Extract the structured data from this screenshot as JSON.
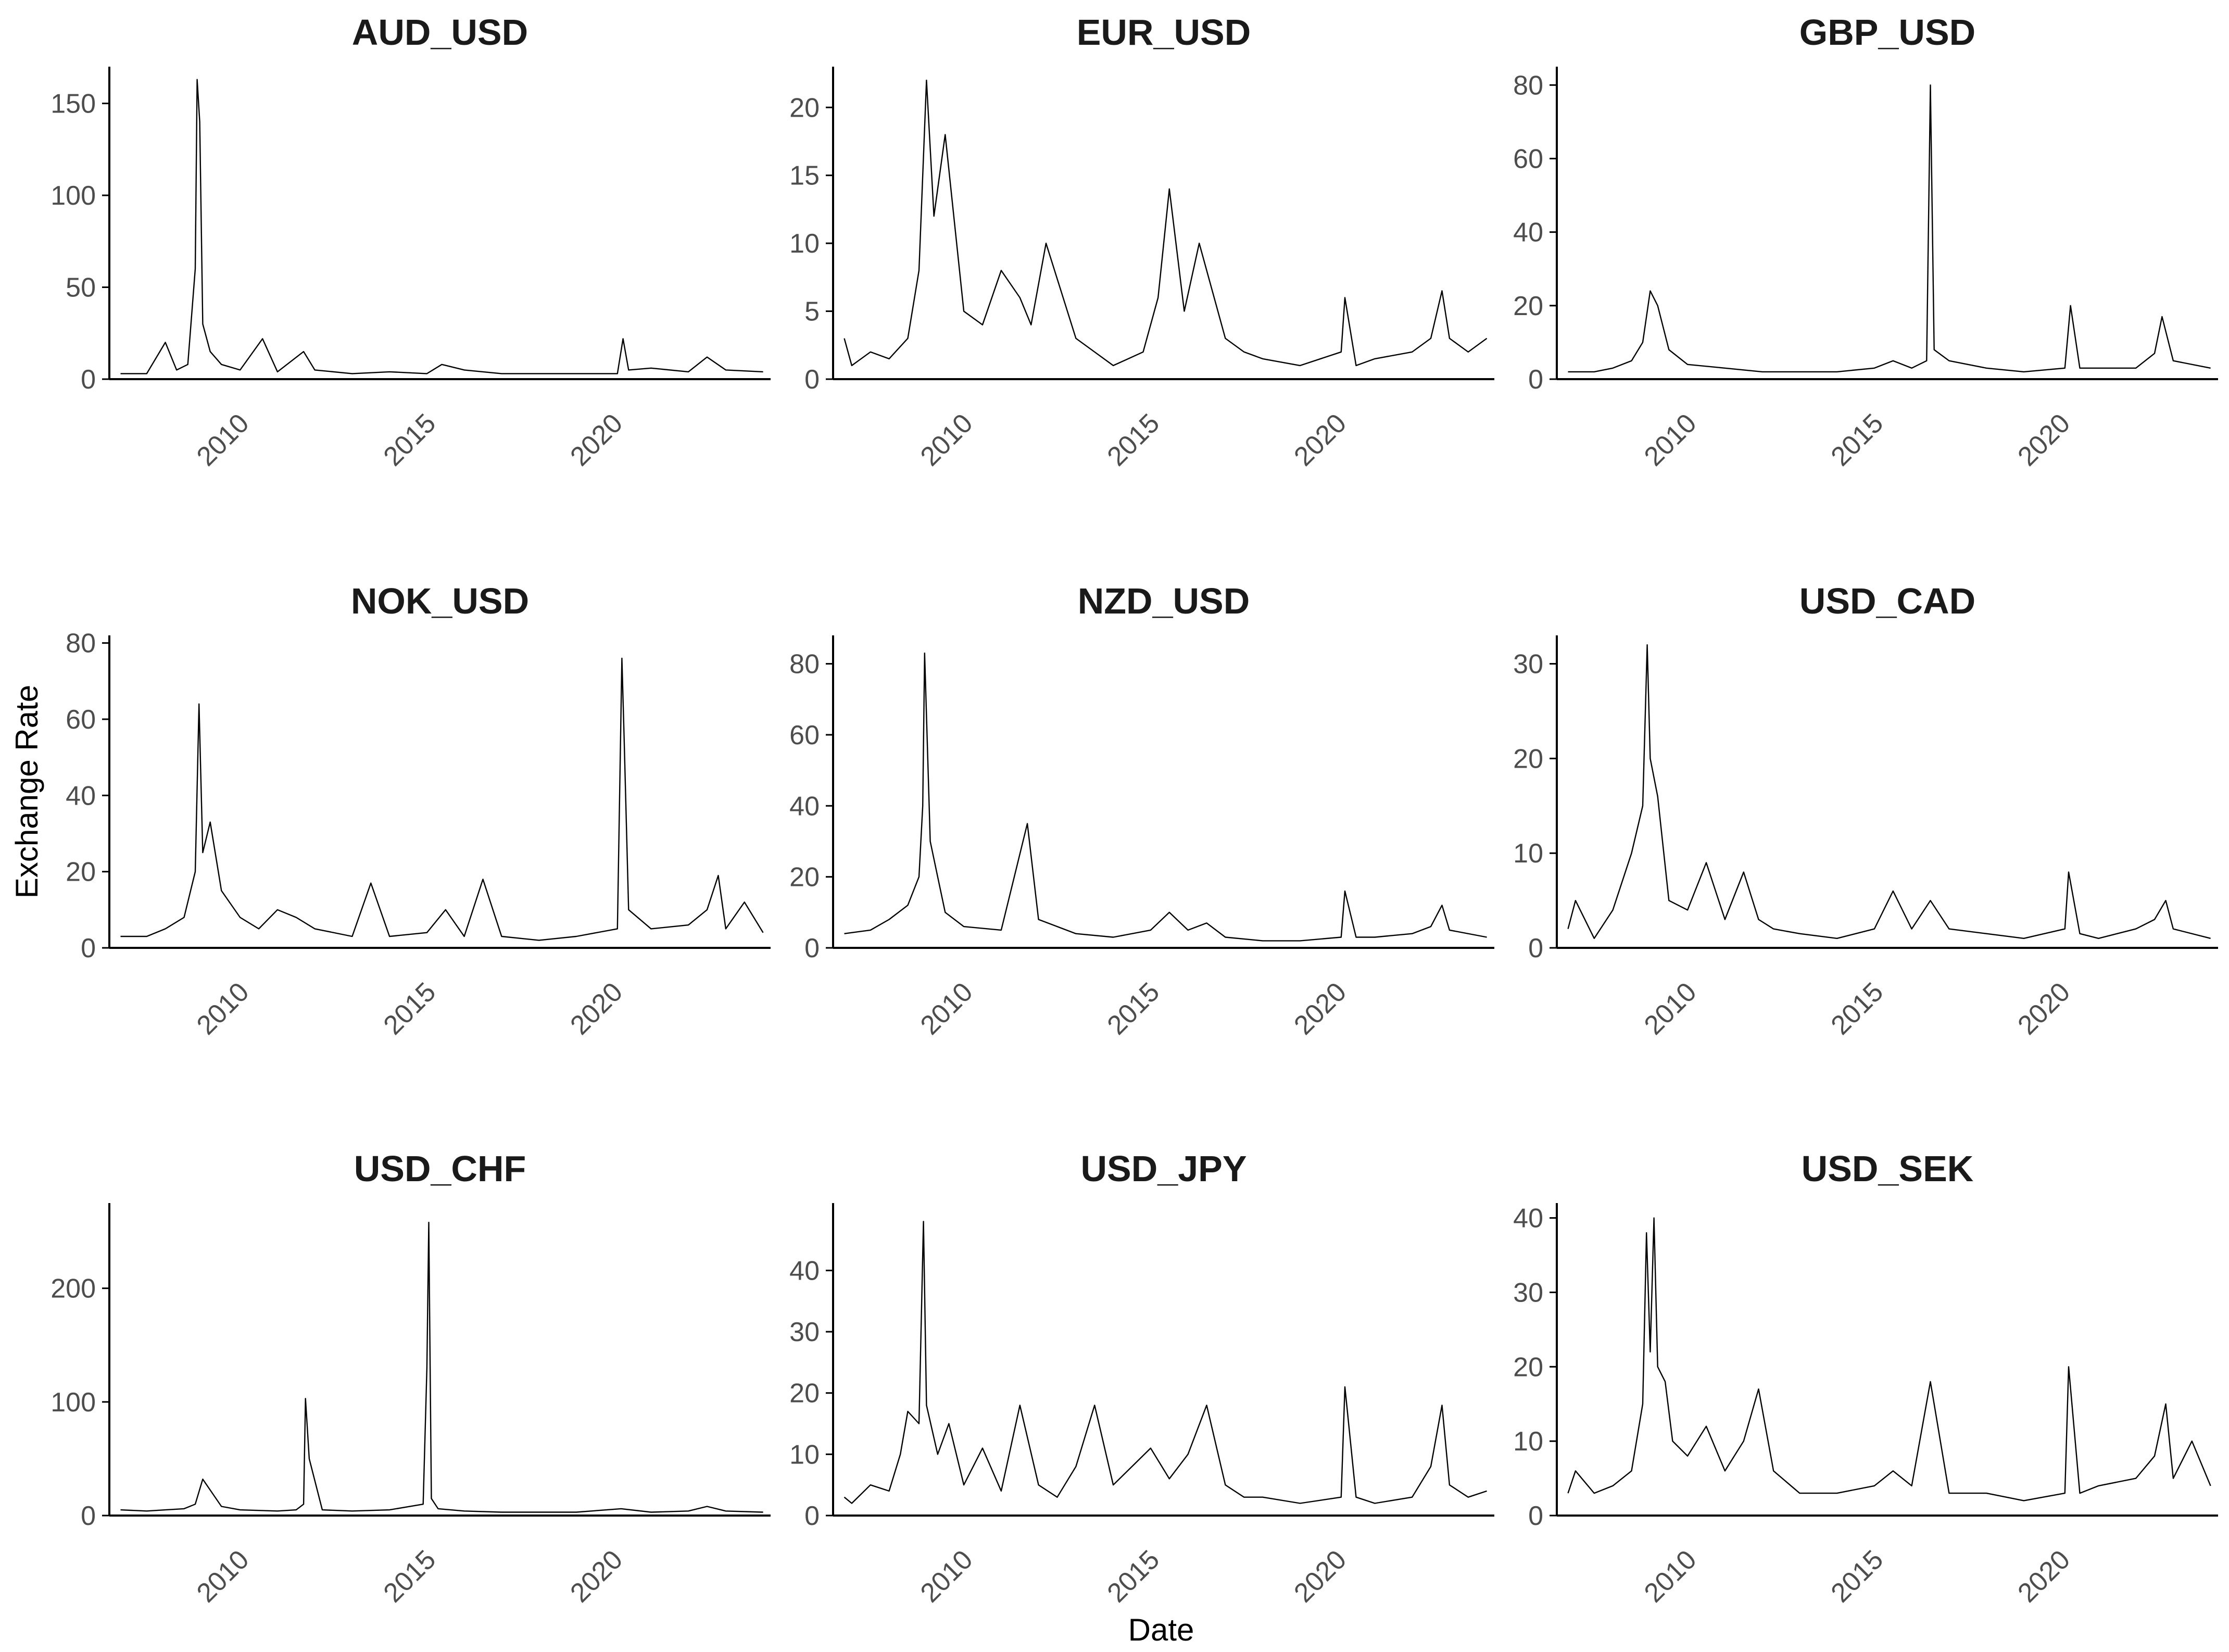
{
  "figure": {
    "xlabel": "Date",
    "ylabel": "Exchange Rate"
  },
  "chart_data": [
    {
      "type": "line",
      "title": "AUD_USD",
      "xlim": [
        2006.5,
        2024.2
      ],
      "ylim": [
        0,
        170
      ],
      "yticks": [
        0,
        50,
        100,
        150
      ],
      "xticks": [
        2010,
        2015,
        2020
      ],
      "series": [
        {
          "x": [
            2006.8,
            2007.5,
            2008.0,
            2008.3,
            2008.6,
            2008.8,
            2008.85,
            2008.92,
            2009.0,
            2009.2,
            2009.5,
            2010.0,
            2010.6,
            2011.0,
            2011.7,
            2012.0,
            2013.0,
            2014.0,
            2015.0,
            2015.4,
            2016.0,
            2017.0,
            2018.0,
            2019.0,
            2020.1,
            2020.25,
            2020.4,
            2021.0,
            2022.0,
            2022.5,
            2023.0,
            2024.0
          ],
          "y": [
            3,
            3,
            20,
            5,
            8,
            60,
            163,
            140,
            30,
            15,
            8,
            5,
            22,
            4,
            15,
            5,
            3,
            4,
            3,
            8,
            5,
            3,
            3,
            3,
            3,
            22,
            5,
            6,
            4,
            12,
            5,
            4
          ]
        }
      ]
    },
    {
      "type": "line",
      "title": "EUR_USD",
      "xlim": [
        2006.5,
        2024.2
      ],
      "ylim": [
        0,
        23
      ],
      "yticks": [
        0,
        5,
        10,
        15,
        20
      ],
      "xticks": [
        2010,
        2015,
        2020
      ],
      "series": [
        {
          "x": [
            2006.8,
            2007.0,
            2007.5,
            2008.0,
            2008.5,
            2008.8,
            2009.0,
            2009.2,
            2009.5,
            2010.0,
            2010.5,
            2011.0,
            2011.5,
            2011.8,
            2012.2,
            2013.0,
            2013.5,
            2014.0,
            2014.8,
            2015.2,
            2015.5,
            2015.9,
            2016.3,
            2017.0,
            2017.5,
            2018.0,
            2019.0,
            2020.1,
            2020.2,
            2020.5,
            2021.0,
            2022.0,
            2022.5,
            2022.8,
            2023.0,
            2023.5,
            2024.0
          ],
          "y": [
            3,
            1,
            2,
            1.5,
            3,
            8,
            22,
            12,
            18,
            5,
            4,
            8,
            6,
            4,
            10,
            3,
            2,
            1,
            2,
            6,
            14,
            5,
            10,
            3,
            2,
            1.5,
            1,
            2,
            6,
            1,
            1.5,
            2,
            3,
            6.5,
            3,
            2,
            3
          ]
        }
      ]
    },
    {
      "type": "line",
      "title": "GBP_USD",
      "xlim": [
        2006.5,
        2024.2
      ],
      "ylim": [
        0,
        85
      ],
      "yticks": [
        0,
        20,
        40,
        60,
        80
      ],
      "xticks": [
        2010,
        2015,
        2020
      ],
      "series": [
        {
          "x": [
            2006.8,
            2007.5,
            2008.0,
            2008.5,
            2008.8,
            2009.0,
            2009.2,
            2009.5,
            2010.0,
            2011.0,
            2012.0,
            2013.0,
            2014.0,
            2015.0,
            2015.5,
            2016.0,
            2016.4,
            2016.5,
            2016.6,
            2017.0,
            2018.0,
            2019.0,
            2020.1,
            2020.25,
            2020.5,
            2021.0,
            2022.0,
            2022.5,
            2022.7,
            2023.0,
            2024.0
          ],
          "y": [
            2,
            2,
            3,
            5,
            10,
            24,
            20,
            8,
            4,
            3,
            2,
            2,
            2,
            3,
            5,
            3,
            5,
            80,
            8,
            5,
            3,
            2,
            3,
            20,
            3,
            3,
            3,
            7,
            17,
            5,
            3
          ]
        }
      ]
    },
    {
      "type": "line",
      "title": "NOK_USD",
      "xlim": [
        2006.5,
        2024.2
      ],
      "ylim": [
        0,
        82
      ],
      "yticks": [
        0,
        20,
        40,
        60,
        80
      ],
      "xticks": [
        2010,
        2015,
        2020
      ],
      "series": [
        {
          "x": [
            2006.8,
            2007.5,
            2008.0,
            2008.5,
            2008.8,
            2008.9,
            2009.0,
            2009.2,
            2009.5,
            2010.0,
            2010.5,
            2011.0,
            2011.5,
            2012.0,
            2013.0,
            2013.5,
            2014.0,
            2015.0,
            2015.5,
            2016.0,
            2016.5,
            2017.0,
            2018.0,
            2019.0,
            2020.1,
            2020.22,
            2020.28,
            2020.4,
            2021.0,
            2022.0,
            2022.5,
            2022.8,
            2023.0,
            2023.5,
            2024.0
          ],
          "y": [
            3,
            3,
            5,
            8,
            20,
            64,
            25,
            33,
            15,
            8,
            5,
            10,
            8,
            5,
            3,
            17,
            3,
            4,
            10,
            3,
            18,
            3,
            2,
            3,
            5,
            76,
            55,
            10,
            5,
            6,
            10,
            19,
            5,
            12,
            4
          ]
        }
      ]
    },
    {
      "type": "line",
      "title": "NZD_USD",
      "xlim": [
        2006.5,
        2024.2
      ],
      "ylim": [
        0,
        88
      ],
      "yticks": [
        0,
        20,
        40,
        60,
        80
      ],
      "xticks": [
        2010,
        2015,
        2020
      ],
      "series": [
        {
          "x": [
            2006.8,
            2007.5,
            2008.0,
            2008.5,
            2008.8,
            2008.9,
            2008.95,
            2009.1,
            2009.3,
            2009.5,
            2010.0,
            2011.0,
            2011.7,
            2012.0,
            2013.0,
            2014.0,
            2015.0,
            2015.5,
            2016.0,
            2016.5,
            2017.0,
            2018.0,
            2019.0,
            2020.1,
            2020.2,
            2020.5,
            2021.0,
            2022.0,
            2022.5,
            2022.8,
            2023.0,
            2024.0
          ],
          "y": [
            4,
            5,
            8,
            12,
            20,
            40,
            83,
            30,
            20,
            10,
            6,
            5,
            35,
            8,
            4,
            3,
            5,
            10,
            5,
            7,
            3,
            2,
            2,
            3,
            16,
            3,
            3,
            4,
            6,
            12,
            5,
            3
          ]
        }
      ]
    },
    {
      "type": "line",
      "title": "USD_CAD",
      "xlim": [
        2006.5,
        2024.2
      ],
      "ylim": [
        0,
        33
      ],
      "yticks": [
        0,
        10,
        20,
        30
      ],
      "xticks": [
        2010,
        2015,
        2020
      ],
      "series": [
        {
          "x": [
            2006.8,
            2007.0,
            2007.5,
            2008.0,
            2008.5,
            2008.8,
            2008.92,
            2009.0,
            2009.2,
            2009.5,
            2010.0,
            2010.5,
            2011.0,
            2011.5,
            2011.9,
            2012.3,
            2013.0,
            2014.0,
            2015.0,
            2015.5,
            2016.0,
            2016.5,
            2017.0,
            2018.0,
            2019.0,
            2020.1,
            2020.2,
            2020.5,
            2021.0,
            2022.0,
            2022.5,
            2022.8,
            2023.0,
            2024.0
          ],
          "y": [
            2,
            5,
            1,
            4,
            10,
            15,
            32,
            20,
            16,
            5,
            4,
            9,
            3,
            8,
            3,
            2,
            1.5,
            1,
            2,
            6,
            2,
            5,
            2,
            1.5,
            1,
            2,
            8,
            1.5,
            1,
            2,
            3,
            5,
            2,
            1
          ]
        }
      ]
    },
    {
      "type": "line",
      "title": "USD_CHF",
      "xlim": [
        2006.5,
        2024.2
      ],
      "ylim": [
        0,
        275
      ],
      "yticks": [
        0,
        100,
        200
      ],
      "xticks": [
        2010,
        2015,
        2020
      ],
      "series": [
        {
          "x": [
            2006.8,
            2007.5,
            2008.0,
            2008.5,
            2008.8,
            2009.0,
            2009.5,
            2010.0,
            2011.0,
            2011.5,
            2011.7,
            2011.75,
            2011.85,
            2012.2,
            2013.0,
            2014.0,
            2014.9,
            2015.0,
            2015.05,
            2015.12,
            2015.3,
            2016.0,
            2017.0,
            2018.0,
            2019.0,
            2020.2,
            2021.0,
            2022.0,
            2022.5,
            2023.0,
            2024.0
          ],
          "y": [
            5,
            4,
            5,
            6,
            10,
            32,
            8,
            5,
            4,
            5,
            10,
            103,
            50,
            5,
            4,
            5,
            10,
            130,
            258,
            15,
            6,
            4,
            3,
            3,
            3,
            6,
            3,
            4,
            8,
            4,
            3
          ]
        }
      ]
    },
    {
      "type": "line",
      "title": "USD_JPY",
      "xlim": [
        2006.5,
        2024.2
      ],
      "ylim": [
        0,
        51
      ],
      "yticks": [
        0,
        10,
        20,
        30,
        40
      ],
      "xticks": [
        2010,
        2015,
        2020
      ],
      "series": [
        {
          "x": [
            2006.8,
            2007.0,
            2007.5,
            2008.0,
            2008.3,
            2008.5,
            2008.8,
            2008.92,
            2009.0,
            2009.3,
            2009.6,
            2010.0,
            2010.5,
            2011.0,
            2011.5,
            2012.0,
            2012.5,
            2013.0,
            2013.5,
            2014.0,
            2015.0,
            2015.5,
            2016.0,
            2016.5,
            2017.0,
            2017.5,
            2018.0,
            2019.0,
            2020.1,
            2020.2,
            2020.5,
            2021.0,
            2022.0,
            2022.5,
            2022.8,
            2023.0,
            2023.5,
            2024.0
          ],
          "y": [
            3,
            2,
            5,
            4,
            10,
            17,
            15,
            48,
            18,
            10,
            15,
            5,
            11,
            4,
            18,
            5,
            3,
            8,
            18,
            5,
            11,
            6,
            10,
            18,
            5,
            3,
            3,
            2,
            3,
            21,
            3,
            2,
            3,
            8,
            18,
            5,
            3,
            4
          ]
        }
      ]
    },
    {
      "type": "line",
      "title": "USD_SEK",
      "xlim": [
        2006.5,
        2024.2
      ],
      "ylim": [
        0,
        42
      ],
      "yticks": [
        0,
        10,
        20,
        30,
        40
      ],
      "xticks": [
        2010,
        2015,
        2020
      ],
      "series": [
        {
          "x": [
            2006.8,
            2007.0,
            2007.5,
            2008.0,
            2008.5,
            2008.8,
            2008.9,
            2009.0,
            2009.1,
            2009.2,
            2009.4,
            2009.6,
            2010.0,
            2010.5,
            2011.0,
            2011.5,
            2011.9,
            2012.3,
            2013.0,
            2014.0,
            2015.0,
            2015.5,
            2016.0,
            2016.5,
            2017.0,
            2018.0,
            2019.0,
            2020.1,
            2020.2,
            2020.5,
            2021.0,
            2022.0,
            2022.5,
            2022.8,
            2023.0,
            2023.5,
            2024.0
          ],
          "y": [
            3,
            6,
            3,
            4,
            6,
            15,
            38,
            22,
            40,
            20,
            18,
            10,
            8,
            12,
            6,
            10,
            17,
            6,
            3,
            3,
            4,
            6,
            4,
            18,
            3,
            3,
            2,
            3,
            20,
            3,
            4,
            5,
            8,
            15,
            5,
            10,
            4
          ]
        }
      ]
    }
  ]
}
